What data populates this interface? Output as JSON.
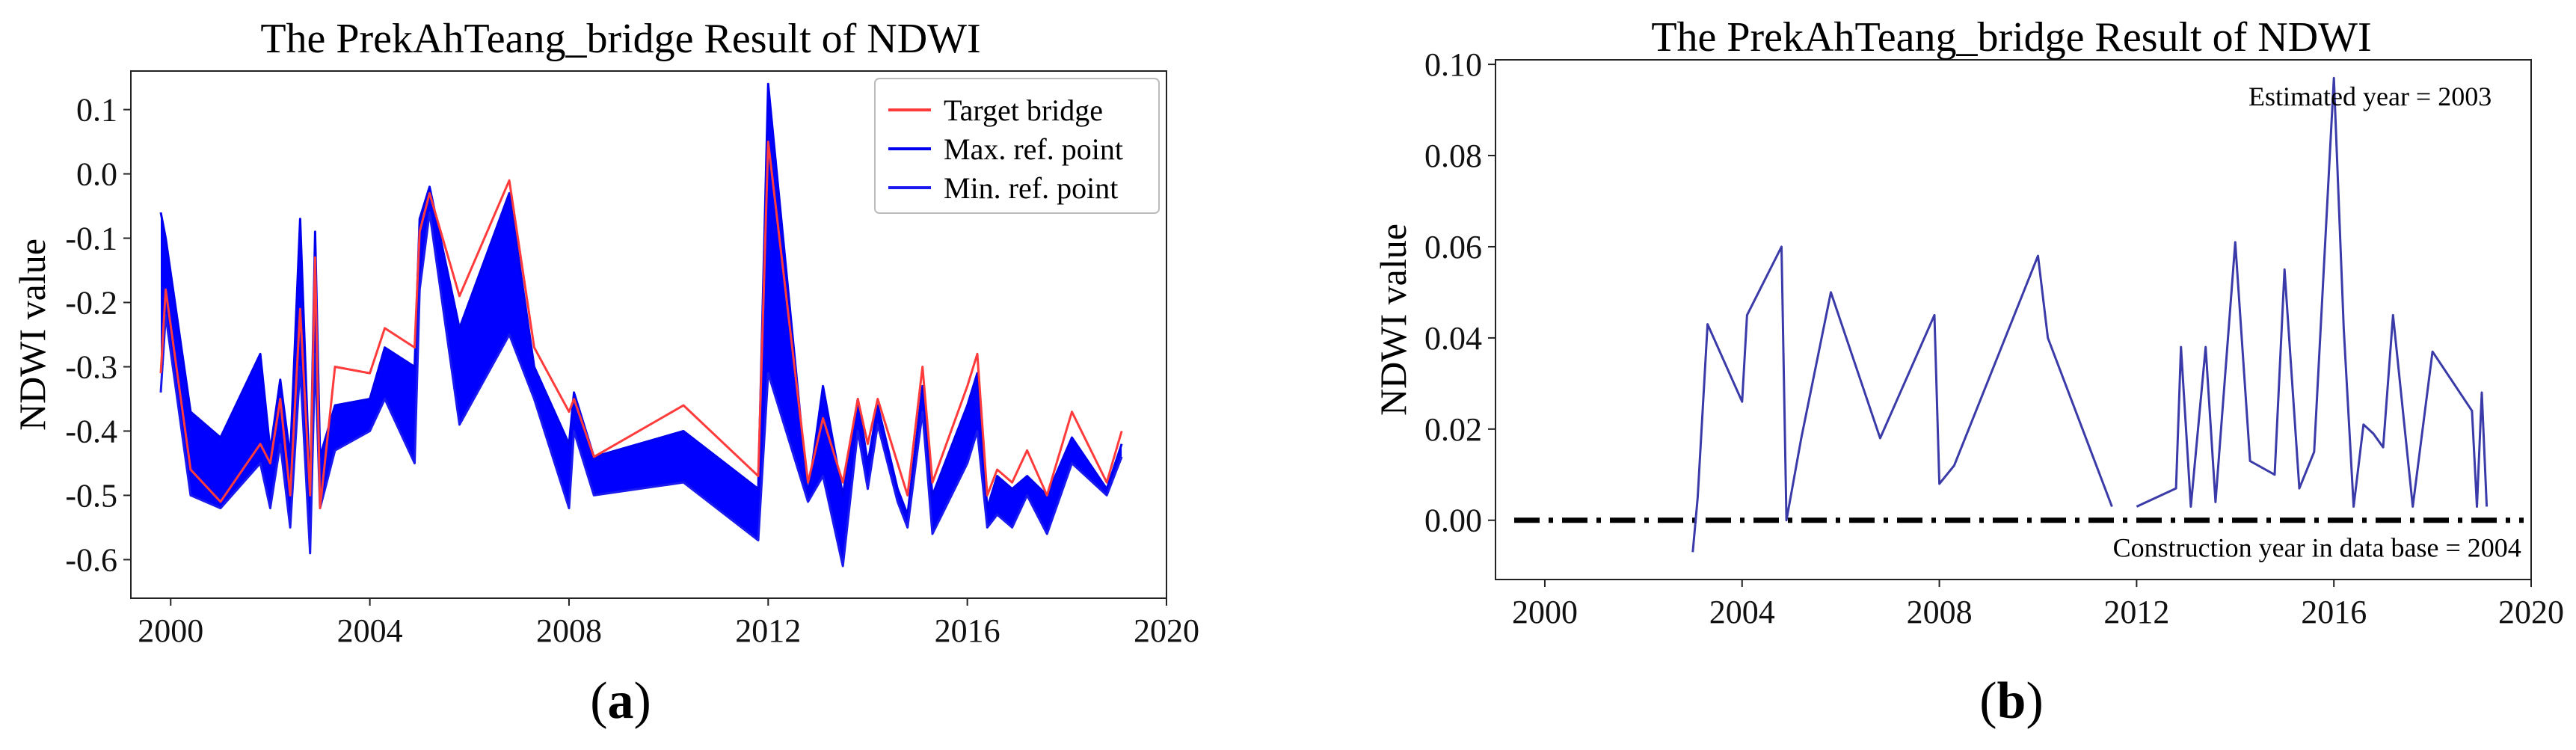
{
  "chart_data": [
    {
      "type": "line",
      "panel_label": "a",
      "title": "The PrekAhTeang_bridge Result of NDWI",
      "xlabel": "",
      "ylabel": "NDWI value",
      "xlim": [
        1999.2,
        2020
      ],
      "ylim": [
        -0.66,
        0.16
      ],
      "xticks": [
        2000,
        2004,
        2008,
        2012,
        2016,
        2020
      ],
      "yticks": [
        -0.6,
        -0.5,
        -0.4,
        -0.3,
        -0.2,
        -0.1,
        0.0,
        0.1
      ],
      "ytick_labels": [
        "-0.6",
        "-0.5",
        "-0.4",
        "-0.3",
        "-0.2",
        "-0.1",
        "0.0",
        "0.1"
      ],
      "grid": false,
      "legend_position": "top-right",
      "colors": {
        "target": "#ff3b3b",
        "max": "#0000ee",
        "min": "#1a1aee",
        "band": "#0000ff"
      },
      "series": [
        {
          "name": "Target bridge",
          "x": [
            1999.8,
            1999.9,
            2000.4,
            2001.0,
            2001.8,
            2002.0,
            2002.2,
            2002.4,
            2002.6,
            2002.8,
            2002.9,
            2003.0,
            2003.3,
            2004.0,
            2004.3,
            2004.9,
            2005.0,
            2005.2,
            2005.8,
            2006.8,
            2007.3,
            2008.0,
            2008.1,
            2008.5,
            2010.3,
            2011.8,
            2012.0,
            2012.8,
            2013.1,
            2013.5,
            2013.8,
            2014.0,
            2014.2,
            2014.6,
            2014.8,
            2015.1,
            2015.3,
            2016.0,
            2016.2,
            2016.4,
            2016.6,
            2016.9,
            2017.2,
            2017.6,
            2018.1,
            2018.8,
            2019.1
          ],
          "values": [
            -0.31,
            -0.18,
            -0.46,
            -0.51,
            -0.42,
            -0.45,
            -0.35,
            -0.5,
            -0.21,
            -0.5,
            -0.13,
            -0.52,
            -0.3,
            -0.31,
            -0.24,
            -0.27,
            -0.09,
            -0.03,
            -0.19,
            -0.01,
            -0.27,
            -0.37,
            -0.35,
            -0.44,
            -0.36,
            -0.47,
            0.05,
            -0.48,
            -0.38,
            -0.48,
            -0.35,
            -0.42,
            -0.35,
            -0.45,
            -0.5,
            -0.3,
            -0.48,
            -0.33,
            -0.28,
            -0.5,
            -0.46,
            -0.48,
            -0.43,
            -0.5,
            -0.37,
            -0.48,
            -0.4
          ]
        },
        {
          "name": "Max. ref. point",
          "x": [
            1999.8,
            1999.9,
            2000.4,
            2001.0,
            2001.8,
            2002.0,
            2002.2,
            2002.4,
            2002.6,
            2002.8,
            2002.9,
            2003.0,
            2003.3,
            2004.0,
            2004.3,
            2004.9,
            2005.0,
            2005.2,
            2005.8,
            2006.8,
            2007.3,
            2008.0,
            2008.1,
            2008.5,
            2010.3,
            2011.8,
            2012.0,
            2012.8,
            2013.1,
            2013.5,
            2013.8,
            2014.0,
            2014.2,
            2014.6,
            2014.8,
            2015.1,
            2015.3,
            2016.0,
            2016.2,
            2016.4,
            2016.6,
            2016.9,
            2017.2,
            2017.6,
            2018.1,
            2018.8,
            2019.1
          ],
          "values": [
            -0.06,
            -0.1,
            -0.37,
            -0.41,
            -0.28,
            -0.43,
            -0.32,
            -0.44,
            -0.07,
            -0.5,
            -0.09,
            -0.44,
            -0.36,
            -0.35,
            -0.27,
            -0.3,
            -0.07,
            -0.02,
            -0.24,
            -0.03,
            -0.3,
            -0.42,
            -0.34,
            -0.44,
            -0.4,
            -0.49,
            0.14,
            -0.5,
            -0.33,
            -0.5,
            -0.35,
            -0.45,
            -0.36,
            -0.49,
            -0.53,
            -0.33,
            -0.5,
            -0.36,
            -0.31,
            -0.52,
            -0.47,
            -0.49,
            -0.47,
            -0.5,
            -0.41,
            -0.49,
            -0.42
          ]
        },
        {
          "name": "Min. ref. point",
          "x": [
            1999.8,
            1999.9,
            2000.4,
            2001.0,
            2001.8,
            2002.0,
            2002.2,
            2002.4,
            2002.6,
            2002.8,
            2002.9,
            2003.0,
            2003.3,
            2004.0,
            2004.3,
            2004.9,
            2005.0,
            2005.2,
            2005.8,
            2006.8,
            2007.3,
            2008.0,
            2008.1,
            2008.5,
            2010.3,
            2011.8,
            2012.0,
            2012.8,
            2013.1,
            2013.5,
            2013.8,
            2014.0,
            2014.2,
            2014.6,
            2014.8,
            2015.1,
            2015.3,
            2016.0,
            2016.2,
            2016.4,
            2016.6,
            2016.9,
            2017.2,
            2017.6,
            2018.1,
            2018.8,
            2019.1
          ],
          "values": [
            -0.34,
            -0.22,
            -0.5,
            -0.52,
            -0.45,
            -0.52,
            -0.42,
            -0.55,
            -0.3,
            -0.59,
            -0.28,
            -0.52,
            -0.43,
            -0.4,
            -0.35,
            -0.45,
            -0.18,
            -0.06,
            -0.39,
            -0.25,
            -0.35,
            -0.52,
            -0.4,
            -0.5,
            -0.48,
            -0.57,
            -0.31,
            -0.51,
            -0.47,
            -0.61,
            -0.4,
            -0.49,
            -0.39,
            -0.51,
            -0.55,
            -0.37,
            -0.56,
            -0.45,
            -0.4,
            -0.55,
            -0.53,
            -0.55,
            -0.5,
            -0.56,
            -0.45,
            -0.5,
            -0.44
          ]
        }
      ]
    },
    {
      "type": "line",
      "panel_label": "b",
      "title": "The PrekAhTeang_bridge Result of NDWI",
      "xlabel": "",
      "ylabel": "NDWI value",
      "xlim": [
        1999,
        2020
      ],
      "ylim": [
        -0.013,
        0.101
      ],
      "xticks": [
        2000,
        2004,
        2008,
        2012,
        2016,
        2020
      ],
      "yticks": [
        0.0,
        0.02,
        0.04,
        0.06,
        0.08,
        0.1
      ],
      "ytick_labels": [
        "0.00",
        "0.02",
        "0.04",
        "0.06",
        "0.08",
        "0.10"
      ],
      "grid": false,
      "colors": {
        "line": "#3a3aa8",
        "baseline": "#000000"
      },
      "annotations": [
        {
          "text": "Estimated year = 2003",
          "x": 2019.2,
          "y": 0.091,
          "anchor": "end"
        },
        {
          "text": "Construction year in data base = 2004",
          "x": 2019.8,
          "y": -0.008,
          "anchor": "end"
        }
      ],
      "baseline": {
        "y": 0.0,
        "style": "dash-dot"
      },
      "series": [
        {
          "segments": [
            {
              "x": [
                2003.0,
                2003.1,
                2003.3,
                2004.0,
                2004.1,
                2004.8,
                2004.9,
                2005.2,
                2005.8,
                2006.8,
                2007.9,
                2008.0,
                2008.3,
                2010.0,
                2010.2,
                2011.5
              ],
              "values": [
                -0.007,
                0.005,
                0.043,
                0.026,
                0.045,
                0.06,
                0.0,
                0.018,
                0.05,
                0.018,
                0.045,
                0.008,
                0.012,
                0.058,
                0.04,
                0.003
              ]
            },
            {
              "x": [
                2012.0,
                2012.8,
                2012.9,
                2013.1,
                2013.4,
                2013.6,
                2014.0,
                2014.3,
                2014.8,
                2015.0,
                2015.3,
                2015.6,
                2016.0,
                2016.2,
                2016.4,
                2016.6,
                2016.8,
                2017.0,
                2017.2,
                2017.6,
                2018.0,
                2018.8,
                2018.9,
                2019.0,
                2019.1
              ],
              "values": [
                0.003,
                0.007,
                0.038,
                0.003,
                0.038,
                0.004,
                0.061,
                0.013,
                0.01,
                0.055,
                0.007,
                0.015,
                0.097,
                0.042,
                0.003,
                0.021,
                0.019,
                0.016,
                0.045,
                0.003,
                0.037,
                0.024,
                0.003,
                0.028,
                0.003
              ]
            }
          ]
        }
      ]
    }
  ]
}
